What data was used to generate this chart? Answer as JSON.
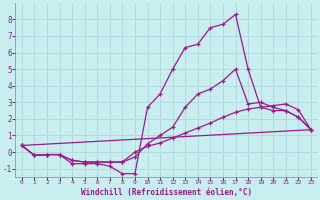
{
  "xlabel": "Windchill (Refroidissement éolien,°C)",
  "background_color": "#c8eef0",
  "line_color": "#9b1b8a",
  "grid_color": "#b0d8dc",
  "xlim": [
    -0.5,
    23.5
  ],
  "ylim": [
    -1.5,
    9.0
  ],
  "yticks": [
    -1,
    0,
    1,
    2,
    3,
    4,
    5,
    6,
    7,
    8
  ],
  "xticks": [
    0,
    1,
    2,
    3,
    4,
    5,
    6,
    7,
    8,
    9,
    10,
    11,
    12,
    13,
    14,
    15,
    16,
    17,
    18,
    19,
    20,
    21,
    22,
    23
  ],
  "line1_x": [
    0,
    1,
    2,
    3,
    4,
    5,
    6,
    7,
    8,
    9,
    10,
    11,
    12,
    13,
    14,
    15,
    16,
    17,
    18,
    19,
    20,
    21,
    22,
    23
  ],
  "line1_y": [
    0.4,
    -0.2,
    -0.15,
    -0.15,
    -0.7,
    -0.7,
    -0.7,
    -0.85,
    -1.3,
    -1.3,
    2.7,
    3.5,
    5.0,
    6.3,
    6.5,
    7.5,
    7.7,
    8.3,
    5.0,
    2.7,
    2.5,
    2.5,
    2.1,
    1.35
  ],
  "line2_x": [
    0,
    1,
    2,
    3,
    4,
    5,
    6,
    7,
    8,
    9,
    10,
    11,
    12,
    13,
    14,
    15,
    16,
    17,
    18,
    19,
    20,
    21,
    22,
    23
  ],
  "line2_y": [
    0.4,
    -0.2,
    -0.15,
    -0.15,
    -0.5,
    -0.6,
    -0.6,
    -0.6,
    -0.6,
    -0.3,
    0.5,
    1.0,
    1.5,
    2.7,
    3.5,
    3.8,
    4.3,
    5.0,
    2.9,
    3.0,
    2.7,
    2.5,
    2.1,
    1.35
  ],
  "line3_x": [
    0,
    1,
    2,
    3,
    4,
    5,
    6,
    7,
    8,
    9,
    10,
    11,
    12,
    13,
    14,
    15,
    16,
    17,
    18,
    19,
    20,
    21,
    22,
    23
  ],
  "line3_y": [
    0.4,
    -0.2,
    -0.15,
    -0.15,
    -0.5,
    -0.6,
    -0.6,
    -0.6,
    -0.6,
    0.0,
    0.35,
    0.55,
    0.85,
    1.15,
    1.45,
    1.75,
    2.1,
    2.4,
    2.6,
    2.7,
    2.8,
    2.9,
    2.55,
    1.35
  ],
  "line4_x": [
    0,
    23
  ],
  "line4_y": [
    0.4,
    1.35
  ]
}
